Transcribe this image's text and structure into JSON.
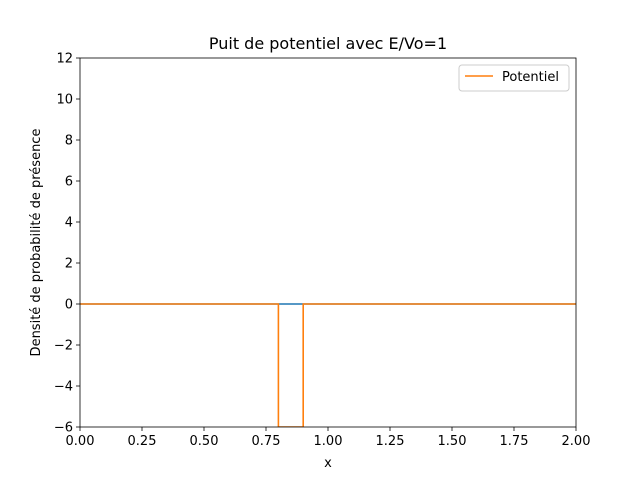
{
  "chart_data": {
    "type": "line",
    "title": "Puit de potentiel avec E/Vo=1",
    "xlabel": "x",
    "ylabel": "Densité de probabilité de présence",
    "xlim": [
      0,
      2
    ],
    "ylim": [
      -6,
      12
    ],
    "xticks": [
      0,
      0.25,
      0.5,
      0.75,
      1.0,
      1.25,
      1.5,
      1.75,
      2.0
    ],
    "xtick_labels": [
      "0.00",
      "0.25",
      "0.50",
      "0.75",
      "1.00",
      "1.25",
      "1.50",
      "1.75",
      "2.00"
    ],
    "yticks": [
      -6,
      -4,
      -2,
      0,
      2,
      4,
      6,
      8,
      10,
      12
    ],
    "ytick_labels": [
      "−6",
      "−4",
      "−2",
      "0",
      "2",
      "4",
      "6",
      "8",
      "10",
      "12"
    ],
    "grid": false,
    "legend": {
      "placement": "top-right"
    },
    "series": [
      {
        "color": "#1f77b4",
        "x": [
          0,
          0.2,
          0.4,
          0.6,
          0.8,
          0.85,
          0.9,
          1.0,
          1.2,
          1.4,
          1.6,
          1.8,
          2.0
        ],
        "y": [
          0,
          0,
          0,
          0,
          0,
          0,
          0,
          0,
          0,
          0,
          0,
          0,
          0
        ]
      },
      {
        "name": "Potentiel",
        "color": "#ff7f0e",
        "x": [
          0,
          0.8,
          0.8,
          0.9,
          0.9,
          2.0
        ],
        "y": [
          0,
          0,
          -6,
          -6,
          0,
          0
        ]
      }
    ]
  }
}
